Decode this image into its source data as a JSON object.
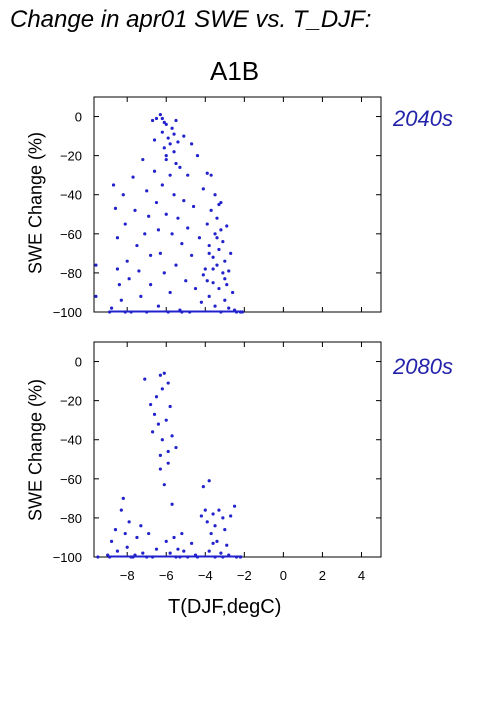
{
  "title": "Change in apr01 SWE vs. T_DJF:",
  "scenario": "A1B",
  "xlabel": "T(DJF,degC)",
  "ylabel": "SWE Change (%)",
  "colors": {
    "points": "#2222cc",
    "period_label": "#2222aa"
  },
  "chart_data": [
    {
      "type": "scatter",
      "period_label": "2040s",
      "xlim": [
        -9.7,
        5
      ],
      "ylim": [
        -100,
        10
      ],
      "x_ticks": [
        -8,
        -6,
        -4,
        -2,
        0,
        2,
        4
      ],
      "y_ticks": [
        0,
        -20,
        -40,
        -60,
        -80,
        -100
      ],
      "x_tick_labels": [],
      "y_tick_labels": [
        "0",
        "−20",
        "−40",
        "−60",
        "−80",
        "−100"
      ],
      "points": [
        [
          -9.6,
          -76
        ],
        [
          -9.6,
          -92
        ],
        [
          -8.9,
          -100
        ],
        [
          -8.8,
          -98
        ],
        [
          -8.7,
          -35
        ],
        [
          -8.6,
          -47
        ],
        [
          -8.5,
          -62
        ],
        [
          -8.5,
          -78
        ],
        [
          -8.4,
          -86
        ],
        [
          -8.3,
          -94
        ],
        [
          -8.2,
          -40
        ],
        [
          -8.1,
          -55
        ],
        [
          -8.0,
          -74
        ],
        [
          -7.9,
          -83
        ],
        [
          -7.8,
          -100
        ],
        [
          -7.7,
          -31
        ],
        [
          -7.6,
          -48
        ],
        [
          -7.5,
          -66
        ],
        [
          -7.4,
          -79
        ],
        [
          -7.3,
          -92
        ],
        [
          -7.2,
          -22
        ],
        [
          -7.1,
          -60
        ],
        [
          -7.0,
          -38
        ],
        [
          -6.9,
          -51
        ],
        [
          -6.8,
          -71
        ],
        [
          -6.8,
          -86
        ],
        [
          -6.7,
          -2
        ],
        [
          -6.6,
          -12
        ],
        [
          -6.6,
          -28
        ],
        [
          -6.5,
          -44
        ],
        [
          -6.4,
          -58
        ],
        [
          -6.4,
          -97
        ],
        [
          -6.3,
          -70
        ],
        [
          -6.3,
          1
        ],
        [
          -6.2,
          -8
        ],
        [
          -6.2,
          -35
        ],
        [
          -6.1,
          -16
        ],
        [
          -6.1,
          -80
        ],
        [
          -6.0,
          -4
        ],
        [
          -6.0,
          -22
        ],
        [
          -6.0,
          -50
        ],
        [
          -5.9,
          -11
        ],
        [
          -5.9,
          -100
        ],
        [
          -5.8,
          -30
        ],
        [
          -5.8,
          -90
        ],
        [
          -5.7,
          -6
        ],
        [
          -5.7,
          -60
        ],
        [
          -5.6,
          -18
        ],
        [
          -5.6,
          -40
        ],
        [
          -5.5,
          -2
        ],
        [
          -5.5,
          -76
        ],
        [
          -5.4,
          -13
        ],
        [
          -5.4,
          -52
        ],
        [
          -5.3,
          -26
        ],
        [
          -5.3,
          -99
        ],
        [
          -5.2,
          -65
        ],
        [
          -5.1,
          -10
        ],
        [
          -5.1,
          -43
        ],
        [
          -5.0,
          -84
        ],
        [
          -4.9,
          -30
        ],
        [
          -4.9,
          -57
        ],
        [
          -4.8,
          -100
        ],
        [
          -4.7,
          -14
        ],
        [
          -4.7,
          -71
        ],
        [
          -4.6,
          -46
        ],
        [
          -4.5,
          -88
        ],
        [
          -4.4,
          -20
        ],
        [
          -4.3,
          -62
        ],
        [
          -4.2,
          -95
        ],
        [
          -4.1,
          -37
        ],
        [
          -4.0,
          -78
        ],
        [
          -3.9,
          -29
        ],
        [
          -3.9,
          -55
        ],
        [
          -3.8,
          -66
        ],
        [
          -3.8,
          -92
        ],
        [
          -3.7,
          -30
        ],
        [
          -3.7,
          -48
        ],
        [
          -3.6,
          -72
        ],
        [
          -3.6,
          -85
        ],
        [
          -3.5,
          -40
        ],
        [
          -3.5,
          -60
        ],
        [
          -3.5,
          -97
        ],
        [
          -3.4,
          -52
        ],
        [
          -3.4,
          -76
        ],
        [
          -3.3,
          -68
        ],
        [
          -3.3,
          -88
        ],
        [
          -3.2,
          -44
        ],
        [
          -3.2,
          -58
        ],
        [
          -3.2,
          -100
        ],
        [
          -3.1,
          -64
        ],
        [
          -3.1,
          -80
        ],
        [
          -3.0,
          -74
        ],
        [
          -3.0,
          -94
        ],
        [
          -2.9,
          -56
        ],
        [
          -2.9,
          -86
        ],
        [
          -2.8,
          -98
        ],
        [
          -2.7,
          -70
        ],
        [
          -2.6,
          -90
        ],
        [
          -2.5,
          -99
        ],
        [
          -2.4,
          -100
        ],
        [
          -2.2,
          -100
        ],
        [
          -2.1,
          -100
        ],
        [
          -6.2,
          -1
        ],
        [
          -6.1,
          -3
        ],
        [
          -5.8,
          -14
        ],
        [
          -6.5,
          -1
        ],
        [
          -5.6,
          -9
        ],
        [
          -6.0,
          -20
        ],
        [
          -5.5,
          -24
        ],
        [
          -4.1,
          -81
        ],
        [
          -3.6,
          -78
        ],
        [
          -3.4,
          -62
        ],
        [
          -3.0,
          -83
        ],
        [
          -2.8,
          -79
        ],
        [
          -3.8,
          -70
        ],
        [
          -3.3,
          -45
        ],
        [
          -3.9,
          -84
        ],
        [
          -8.1,
          -100
        ],
        [
          -7.0,
          -100
        ],
        [
          -5.2,
          -100
        ]
      ]
    },
    {
      "type": "scatter",
      "period_label": "2080s",
      "xlim": [
        -9.7,
        5
      ],
      "ylim": [
        -100,
        10
      ],
      "x_ticks": [
        -8,
        -6,
        -4,
        -2,
        0,
        2,
        4
      ],
      "y_ticks": [
        0,
        -20,
        -40,
        -60,
        -80,
        -100
      ],
      "x_tick_labels": [
        "−8",
        "−6",
        "−4",
        "−2",
        "0",
        "2",
        "4"
      ],
      "y_tick_labels": [
        "0",
        "−20",
        "−40",
        "−60",
        "−80",
        "−100"
      ],
      "points": [
        [
          -9.5,
          -100
        ],
        [
          -9.0,
          -99
        ],
        [
          -8.8,
          -92
        ],
        [
          -8.6,
          -86
        ],
        [
          -8.5,
          -97
        ],
        [
          -8.3,
          -76
        ],
        [
          -8.2,
          -70
        ],
        [
          -8.1,
          -88
        ],
        [
          -8.0,
          -95
        ],
        [
          -7.9,
          -82
        ],
        [
          -7.8,
          -100
        ],
        [
          -7.6,
          -99
        ],
        [
          -7.5,
          -90
        ],
        [
          -7.3,
          -84
        ],
        [
          -7.2,
          -98
        ],
        [
          -7.1,
          -9
        ],
        [
          -7.0,
          -100
        ],
        [
          -6.9,
          -88
        ],
        [
          -6.8,
          -22
        ],
        [
          -6.7,
          -36
        ],
        [
          -6.6,
          -27
        ],
        [
          -6.5,
          -18
        ],
        [
          -6.5,
          -96
        ],
        [
          -6.4,
          -32
        ],
        [
          -6.3,
          -48
        ],
        [
          -6.3,
          -55
        ],
        [
          -6.2,
          -14
        ],
        [
          -6.2,
          -40
        ],
        [
          -6.1,
          -6
        ],
        [
          -6.1,
          -63
        ],
        [
          -6.0,
          -30
        ],
        [
          -6.0,
          -92
        ],
        [
          -5.9,
          -11
        ],
        [
          -5.9,
          -46
        ],
        [
          -5.8,
          -23
        ],
        [
          -5.8,
          -98
        ],
        [
          -5.7,
          -38
        ],
        [
          -5.7,
          -73
        ],
        [
          -5.6,
          -90
        ],
        [
          -5.5,
          -44
        ],
        [
          -5.5,
          -100
        ],
        [
          -5.4,
          -96
        ],
        [
          -5.2,
          -88
        ],
        [
          -5.1,
          -97
        ],
        [
          -4.9,
          -100
        ],
        [
          -4.7,
          -93
        ],
        [
          -4.5,
          -99
        ],
        [
          -4.1,
          -64
        ],
        [
          -4.0,
          -76
        ],
        [
          -3.9,
          -82
        ],
        [
          -3.8,
          -97
        ],
        [
          -3.8,
          -61
        ],
        [
          -3.7,
          -88
        ],
        [
          -3.6,
          -78
        ],
        [
          -3.5,
          -100
        ],
        [
          -3.5,
          -84
        ],
        [
          -3.4,
          -92
        ],
        [
          -3.3,
          -76
        ],
        [
          -3.2,
          -98
        ],
        [
          -3.1,
          -80
        ],
        [
          -3.0,
          -86
        ],
        [
          -2.9,
          -94
        ],
        [
          -2.8,
          -99
        ],
        [
          -2.7,
          -79
        ],
        [
          -2.5,
          -74
        ],
        [
          -2.4,
          -100
        ],
        [
          -2.2,
          -100
        ],
        [
          -6.3,
          -7
        ],
        [
          -5.9,
          -52
        ],
        [
          -4.4,
          -100
        ],
        [
          -4.2,
          -79
        ],
        [
          -3.6,
          -93
        ],
        [
          -3.1,
          -100
        ],
        [
          -8.9,
          -100
        ],
        [
          -7.7,
          -100
        ],
        [
          -6.7,
          -100
        ],
        [
          -5.3,
          -100
        ]
      ]
    }
  ]
}
